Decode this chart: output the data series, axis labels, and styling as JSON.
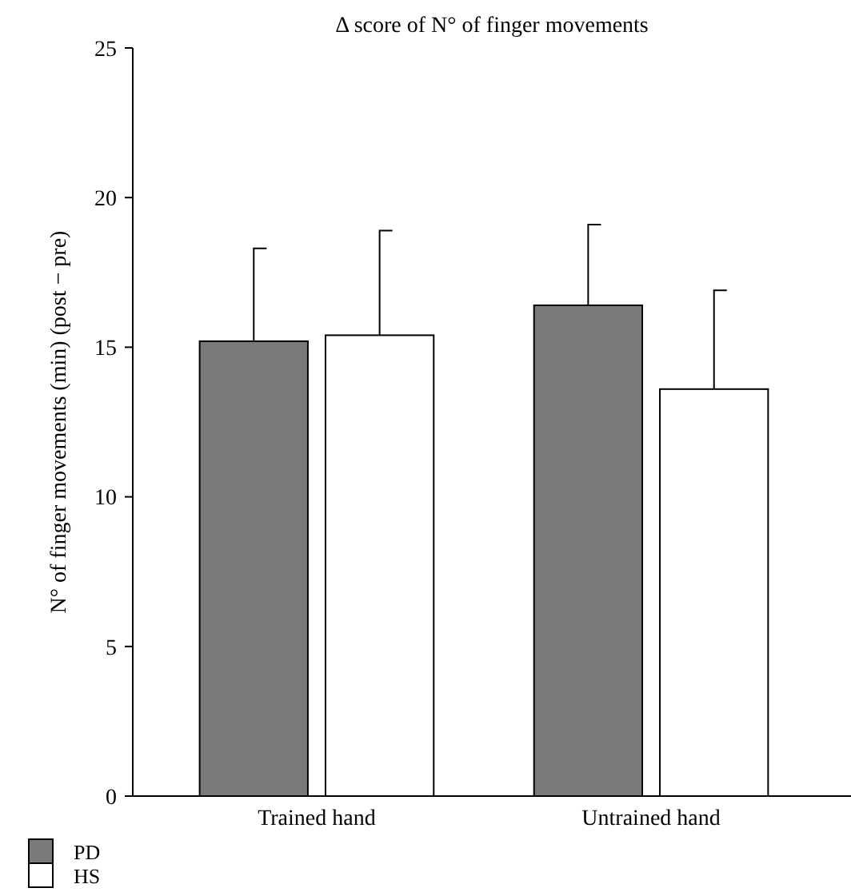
{
  "chart_data": {
    "type": "bar",
    "title": "Δ score of N° of finger movements",
    "ylabel": "N° of finger movements (min) (post − pre)",
    "categories": [
      "Trained hand",
      "Untrained hand"
    ],
    "series": [
      {
        "name": "PD",
        "color": "#7a7a7a",
        "values": [
          15.2,
          16.4
        ],
        "errors": [
          [
            15.2,
            18.3
          ],
          [
            16.4,
            19.1
          ]
        ]
      },
      {
        "name": "HS",
        "color": "#ffffff",
        "values": [
          15.4,
          13.6
        ],
        "errors": [
          [
            15.4,
            18.9
          ],
          [
            13.6,
            16.9
          ]
        ]
      }
    ],
    "ylim": [
      0,
      25
    ],
    "yticks": [
      0,
      5,
      10,
      15,
      20,
      25
    ],
    "grid": false,
    "legend": "bottom left"
  }
}
